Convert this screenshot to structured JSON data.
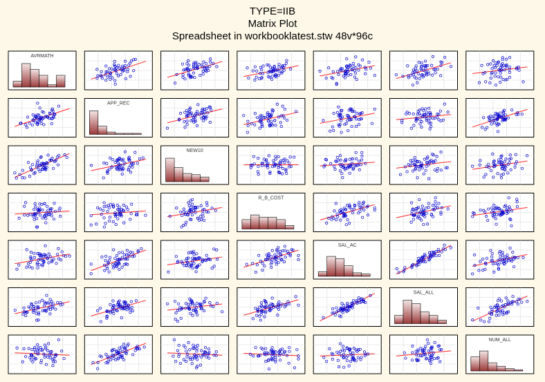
{
  "titles": {
    "line1": "TYPE=IIB",
    "line2": "Matrix Plot",
    "line3": "Spreadsheet in workbooklatest.stw 48v*96c"
  },
  "chart_data": {
    "type": "scatter",
    "variables": [
      "AVRMATH",
      "APP_REC",
      "NEW10",
      "R_B_COST",
      "SAL_AC",
      "SAL_ALL",
      "NUM_ALL"
    ],
    "diagonal": "histogram",
    "histograms": [
      [
        0.25,
        1.0,
        0.75,
        0.5,
        0.1,
        0.5
      ],
      [
        1.0,
        0.35,
        0.1,
        0.03,
        0.02,
        0.02
      ],
      [
        1.0,
        0.6,
        0.35,
        0.3,
        0.2
      ],
      [
        0.4,
        0.6,
        0.5,
        0.5,
        0.4,
        0.15
      ],
      [
        0.2,
        0.85,
        0.75,
        0.45,
        0.15,
        0.1
      ],
      [
        0.35,
        1.0,
        0.85,
        0.5,
        0.35,
        0.15
      ],
      [
        0.6,
        0.85,
        0.35,
        0.2,
        0.1,
        0.05
      ]
    ],
    "correlation": [
      [
        1.0,
        0.45,
        0.55,
        0.25,
        0.35,
        0.35,
        0.2
      ],
      [
        0.45,
        1.0,
        0.4,
        0.2,
        0.25,
        0.25,
        0.55
      ],
      [
        0.55,
        0.4,
        1.0,
        0.2,
        0.2,
        0.2,
        0.2
      ],
      [
        0.25,
        0.2,
        0.2,
        1.0,
        0.4,
        0.4,
        0.05
      ],
      [
        0.35,
        0.6,
        0.3,
        0.35,
        1.0,
        0.9,
        0.35
      ],
      [
        0.4,
        0.55,
        0.4,
        0.4,
        0.9,
        1.0,
        0.4
      ],
      [
        0.15,
        0.7,
        0.2,
        0.05,
        0.2,
        0.2,
        1.0
      ]
    ],
    "points_per_panel": 55,
    "fit": "linear",
    "colors": {
      "points": "#0000cc",
      "fit_line": "#ff2222",
      "bar_top": "#f3e4e4",
      "bar_bottom": "#9c3a3a",
      "grid": "#d8d8d8",
      "frame": "#000000",
      "background": "#fdf8e7"
    },
    "grid": true
  }
}
